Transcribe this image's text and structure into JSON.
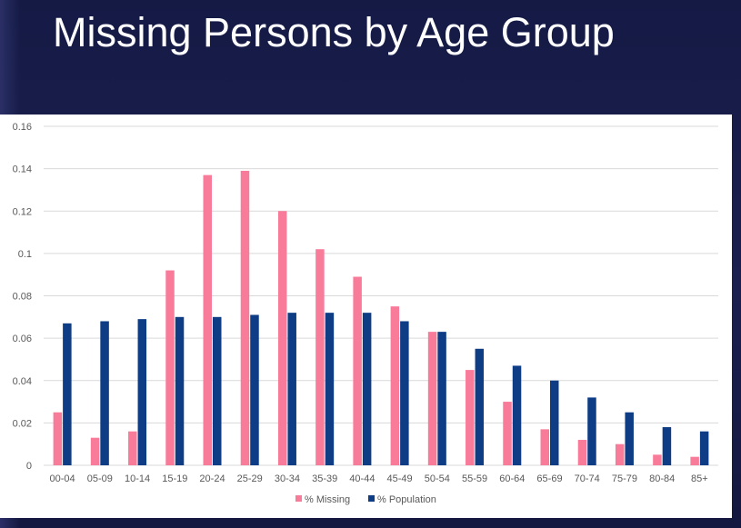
{
  "slide": {
    "title": "Missing Persons by Age Group"
  },
  "colors": {
    "missing": "#f87c9a",
    "population": "#0e3d86",
    "grid": "#d9d9d9",
    "axis_text": "#595959"
  },
  "chart_data": {
    "type": "bar",
    "title": "",
    "xlabel": "",
    "ylabel": "",
    "ylim": [
      0,
      0.16
    ],
    "yticks": [
      "0",
      "0.02",
      "0.04",
      "0.06",
      "0.08",
      "0.1",
      "0.12",
      "0.14",
      "0.16"
    ],
    "ytick_values": [
      0,
      0.02,
      0.04,
      0.06,
      0.08,
      0.1,
      0.12,
      0.14,
      0.16
    ],
    "grid": true,
    "legend_position": "bottom",
    "categories": [
      "00-04",
      "05-09",
      "10-14",
      "15-19",
      "20-24",
      "25-29",
      "30-34",
      "35-39",
      "40-44",
      "45-49",
      "50-54",
      "55-59",
      "60-64",
      "65-69",
      "70-74",
      "75-79",
      "80-84",
      "85+"
    ],
    "series": [
      {
        "name": "% Missing",
        "values": [
          0.025,
          0.013,
          0.016,
          0.092,
          0.137,
          0.139,
          0.12,
          0.102,
          0.089,
          0.075,
          0.063,
          0.045,
          0.03,
          0.017,
          0.012,
          0.01,
          0.005,
          0.004
        ]
      },
      {
        "name": "% Population",
        "values": [
          0.067,
          0.068,
          0.069,
          0.07,
          0.07,
          0.071,
          0.072,
          0.072,
          0.072,
          0.068,
          0.063,
          0.055,
          0.047,
          0.04,
          0.032,
          0.025,
          0.018,
          0.016
        ]
      }
    ]
  }
}
